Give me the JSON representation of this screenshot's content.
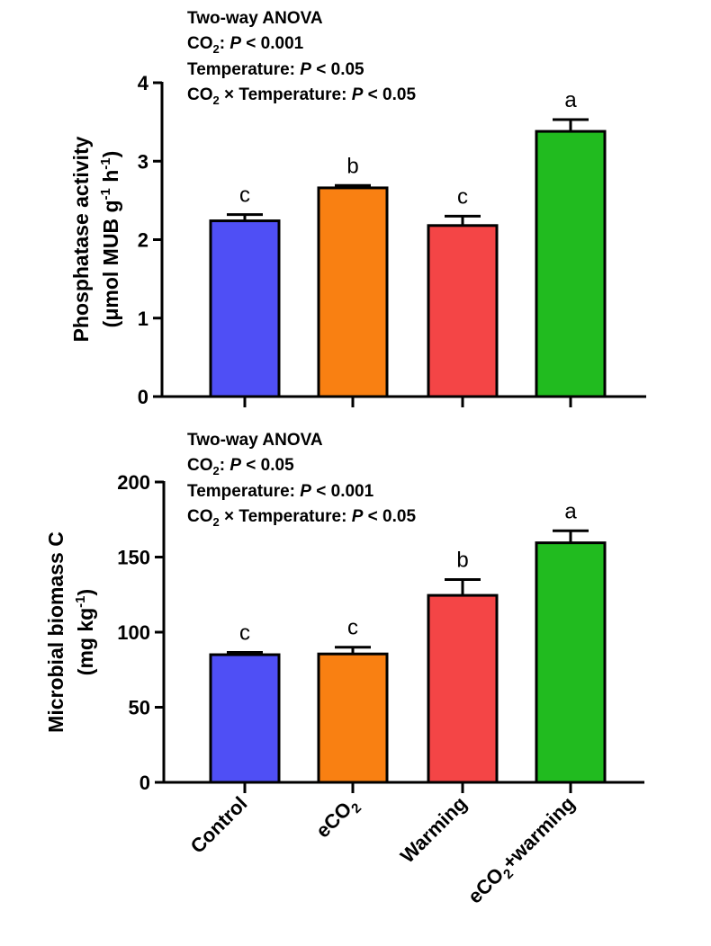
{
  "categories": [
    "Control",
    "eCO2",
    "Warming",
    "eCO2+warming"
  ],
  "colors": {
    "Control": "#4f4ff5",
    "eCO2": "#f98012",
    "Warming": "#f44546",
    "eCO2+warming": "#21bb1f"
  },
  "chart_data": [
    {
      "type": "bar",
      "anova_title": "Two-way ANOVA",
      "anova_lines": [
        "CO2: P < 0.001",
        "Temperature: P < 0.05",
        "CO2 × Temperature: P < 0.05"
      ],
      "ylabel_line1": "Phosphatase activity",
      "ylabel_line2": "(μmol MUB g-1 h-1)",
      "ylim": [
        0,
        4
      ],
      "yticks": [
        0,
        1,
        2,
        3,
        4
      ],
      "tick_labels": [
        "0",
        "1",
        "2",
        "3",
        "4"
      ],
      "values": [
        2.24,
        2.66,
        2.18,
        3.38
      ],
      "errors": [
        0.08,
        0.03,
        0.12,
        0.15
      ],
      "letters": [
        "c",
        "b",
        "c",
        "a"
      ]
    },
    {
      "type": "bar",
      "anova_title": "Two-way ANOVA",
      "anova_lines": [
        "CO2: P < 0.05",
        "Temperature: P < 0.001",
        "CO2 × Temperature: P < 0.05"
      ],
      "ylabel_line1": "Microbial biomass C",
      "ylabel_line2": "(mg kg-1)",
      "ylim": [
        0,
        200
      ],
      "yticks": [
        0,
        50,
        100,
        150,
        200
      ],
      "tick_labels": [
        "0",
        "50",
        "100",
        "150",
        "200"
      ],
      "values": [
        85,
        85.5,
        124.5,
        159.5
      ],
      "errors": [
        1.5,
        4.5,
        10.5,
        8.0
      ],
      "letters": [
        "c",
        "c",
        "b",
        "a"
      ],
      "xlabels": [
        "Control",
        "eCO2",
        "Warming",
        "eCO2+warming"
      ]
    }
  ]
}
